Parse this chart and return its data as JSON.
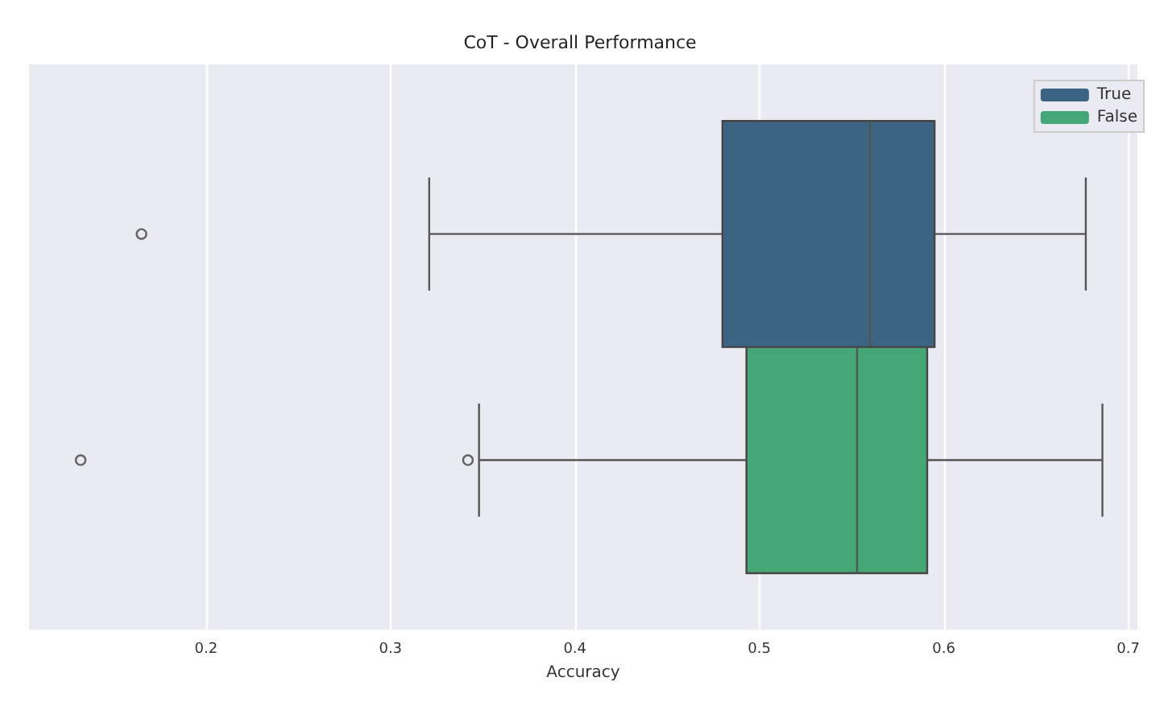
{
  "chart_data": {
    "type": "box",
    "title": "CoT - Overall Performance",
    "xlabel": "Accuracy",
    "orientation": "horizontal",
    "categories": [
      null
    ],
    "series": [
      {
        "name": "True",
        "color": "#3b6482",
        "boxes": [
          {
            "low": 0.321,
            "q1": 0.48,
            "median": 0.56,
            "q3": 0.595,
            "high": 0.677,
            "outliers": [
              0.165
            ]
          }
        ]
      },
      {
        "name": "False",
        "color": "#45a776",
        "boxes": [
          {
            "low": 0.348,
            "q1": 0.493,
            "median": 0.553,
            "q3": 0.591,
            "high": 0.686,
            "outliers": [
              0.132,
              0.342
            ]
          }
        ]
      }
    ],
    "xlim": [
      0.104,
      0.705
    ],
    "xticks": [
      0.2,
      0.3,
      0.4,
      0.5,
      0.6,
      0.7
    ],
    "grid": "x",
    "legend": "top right",
    "tick_labels": "x"
  }
}
